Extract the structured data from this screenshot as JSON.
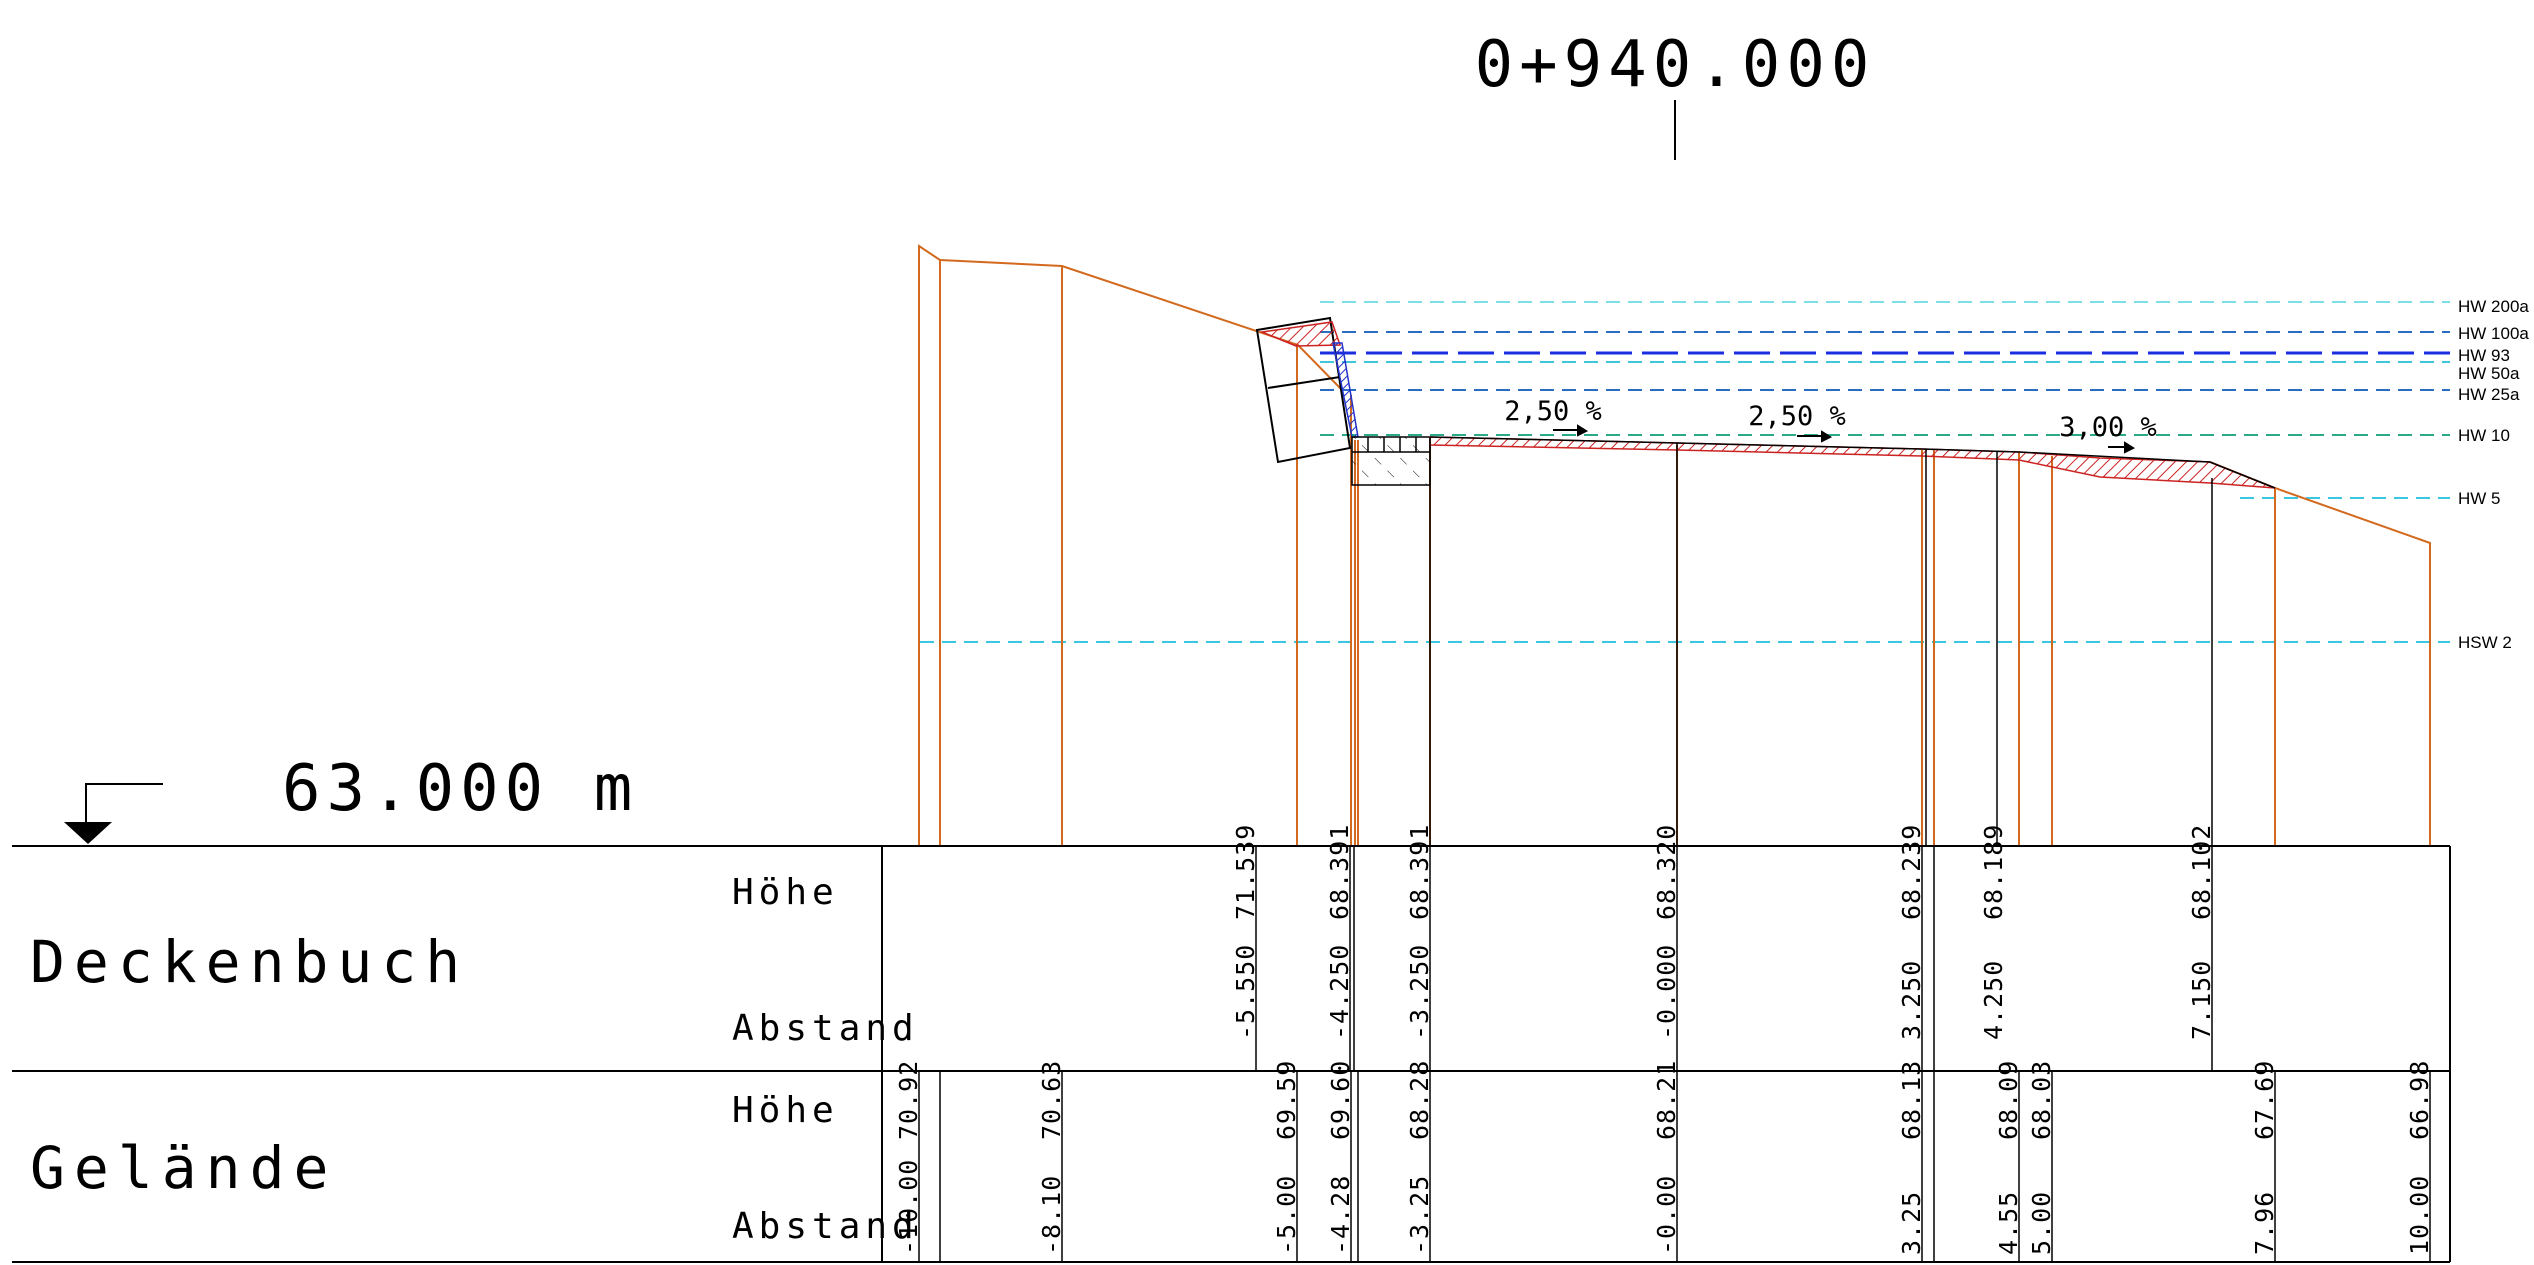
{
  "station": "0+940.000",
  "datum_level": "63.000 m",
  "water_levels": [
    {
      "label": "HW 200a",
      "color": "#7fdfe6"
    },
    {
      "label": "HW 100a",
      "color": "#2a6cc4"
    },
    {
      "label": "HW 93",
      "color": "#1a2ee0"
    },
    {
      "label": "HW 50a",
      "color": "#3fc6d8"
    },
    {
      "label": "HW 25a",
      "color": "#2a6cc4"
    },
    {
      "label": "HW 10",
      "color": "#2aaa88"
    },
    {
      "label": "HW 5",
      "color": "#39c7df"
    },
    {
      "label": "HSW 2",
      "color": "#39c7df"
    }
  ],
  "slopes": [
    "2,50 %",
    "2,50 %",
    "3,00 %"
  ],
  "colors": {
    "terrain": "#d2691e",
    "hatch": "#cc2222",
    "wall_hatch": "#2233cc"
  },
  "bands": {
    "deckenbuch": {
      "title": "Deckenbuch",
      "hoehe_label": "Höhe",
      "abstand_label": "Abstand",
      "hoehe": [
        "71.539",
        "68.391",
        "68.391",
        "68.320",
        "68.239",
        "68.189",
        "68.102"
      ],
      "abstand": [
        "-5.550",
        "-4.250",
        "-3.250",
        "-0.000",
        "3.250",
        "4.250",
        "7.150"
      ]
    },
    "gelaende": {
      "title": "Gelände",
      "hoehe_label": "Höhe",
      "abstand_label": "Abstand",
      "hoehe": [
        "70.92",
        "70.63",
        "69.59",
        "69.60",
        "68.28",
        "68.21",
        "68.13",
        "68.09",
        "68.03",
        "67.69",
        "66.98"
      ],
      "abstand": [
        "-10.00",
        "-8.10",
        "-5.00",
        "-4.28",
        "-3.25",
        "-0.00",
        "3.25",
        "4.55",
        "5.00",
        "7.96",
        "10.00"
      ]
    }
  }
}
